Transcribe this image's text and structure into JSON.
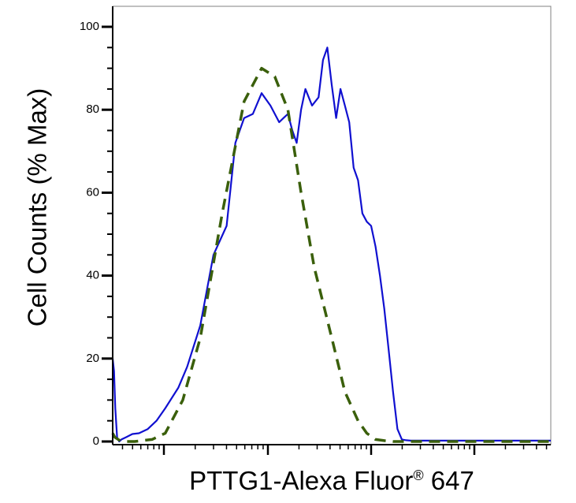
{
  "chart_data": {
    "type": "line",
    "xlabel": "PTTG1-Alexa Fluor",
    "xlabel_sup": "®",
    "xlabel_suffix": " 647",
    "ylabel": "Cell Counts (% Max)",
    "x_scale": "log",
    "ylim": [
      0,
      100
    ],
    "y_ticks": [
      0,
      20,
      40,
      60,
      80,
      100
    ],
    "y_tick_labels": [
      "0",
      "20",
      "40",
      "60",
      "80",
      "100"
    ],
    "grid": false,
    "series": [
      {
        "style": "solid",
        "color": "#1010d0",
        "x": [
          0,
          0.003,
          0.006,
          0.01,
          0.015,
          0.02,
          0.03,
          0.045,
          0.06,
          0.08,
          0.1,
          0.12,
          0.15,
          0.17,
          0.2,
          0.23,
          0.26,
          0.28,
          0.3,
          0.32,
          0.34,
          0.36,
          0.38,
          0.39,
          0.4,
          0.41,
          0.42,
          0.43,
          0.44,
          0.455,
          0.47,
          0.48,
          0.49,
          0.5,
          0.51,
          0.52,
          0.53,
          0.54,
          0.55,
          0.56,
          0.57,
          0.58,
          0.59,
          0.6,
          0.61,
          0.62,
          0.63,
          0.64,
          0.65,
          0.66,
          0.67,
          0.68,
          0.69,
          0.7,
          0.72,
          0.74,
          0.76,
          0.78,
          0.8,
          0.82,
          0.84,
          0.86,
          0.88,
          0.9,
          0.92,
          0.95,
          1.0
        ],
        "y": [
          20,
          17,
          8,
          1,
          0,
          0.5,
          1,
          1.8,
          2,
          3,
          5,
          8,
          13,
          18,
          28,
          45,
          52,
          72,
          78,
          79,
          84,
          81,
          77,
          78,
          79,
          75,
          72,
          80,
          85,
          81,
          83,
          92,
          95,
          86,
          78,
          85,
          81,
          77,
          66,
          63,
          55,
          53,
          52,
          47,
          40,
          32,
          22,
          12,
          3,
          0.5,
          0.3,
          0.2,
          0.2,
          0.2,
          0.2,
          0.2,
          0.2,
          0.2,
          0.2,
          0.2,
          0.2,
          0.2,
          0.2,
          0.2,
          0.2,
          0.2,
          0.2
        ]
      },
      {
        "style": "dashed",
        "color": "#3a5f0b",
        "x": [
          0,
          0.005,
          0.02,
          0.05,
          0.09,
          0.12,
          0.16,
          0.2,
          0.25,
          0.3,
          0.34,
          0.37,
          0.4,
          0.43,
          0.46,
          0.5,
          0.53,
          0.56,
          0.58,
          0.6,
          0.62,
          0.64,
          0.66,
          0.68,
          0.7,
          0.75,
          0.8,
          0.85,
          0.9,
          0.95,
          1.0
        ],
        "y": [
          2,
          1,
          0,
          0,
          0.5,
          2,
          10,
          25,
          55,
          82,
          90,
          88,
          80,
          60,
          42,
          25,
          12,
          5,
          2,
          0.5,
          0.2,
          0,
          0,
          0,
          0,
          0,
          0,
          0,
          0,
          0,
          0
        ]
      }
    ]
  }
}
